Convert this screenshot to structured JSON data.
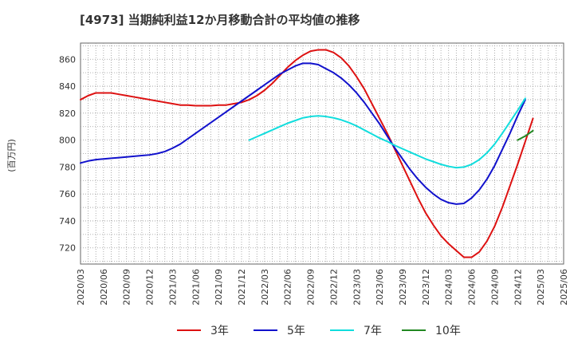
{
  "chart_data": {
    "type": "line",
    "title": "[4973]  当期純利益12か月移動合計の平均値の推移",
    "ylabel": "(百万円)",
    "ylim": [
      708,
      872
    ],
    "yticks": [
      720,
      740,
      760,
      780,
      800,
      820,
      840,
      860
    ],
    "xlim": [
      "2020-03",
      "2025-06"
    ],
    "xticks": [
      "2020/03",
      "2020/06",
      "2020/09",
      "2020/12",
      "2021/03",
      "2021/06",
      "2021/09",
      "2021/12",
      "2022/03",
      "2022/06",
      "2022/09",
      "2022/12",
      "2023/03",
      "2023/06",
      "2023/09",
      "2023/12",
      "2024/03",
      "2024/06",
      "2024/09",
      "2024/12",
      "2025/03",
      "2025/06"
    ],
    "grid": true,
    "legend_position": "bottom",
    "series": [
      {
        "name": "3年",
        "color": "#dd1111",
        "points": [
          [
            "2020-03",
            830
          ],
          [
            "2020-04",
            833
          ],
          [
            "2020-05",
            835
          ],
          [
            "2020-06",
            835
          ],
          [
            "2020-07",
            835
          ],
          [
            "2020-08",
            834
          ],
          [
            "2020-09",
            833
          ],
          [
            "2020-10",
            832
          ],
          [
            "2020-11",
            831
          ],
          [
            "2020-12",
            830
          ],
          [
            "2021-01",
            829
          ],
          [
            "2021-02",
            828
          ],
          [
            "2021-03",
            827
          ],
          [
            "2021-04",
            826
          ],
          [
            "2021-05",
            826
          ],
          [
            "2021-06",
            825.5
          ],
          [
            "2021-07",
            825.5
          ],
          [
            "2021-08",
            825.5
          ],
          [
            "2021-09",
            826
          ],
          [
            "2021-10",
            826
          ],
          [
            "2021-11",
            827
          ],
          [
            "2021-12",
            828
          ],
          [
            "2022-01",
            830
          ],
          [
            "2022-02",
            833
          ],
          [
            "2022-03",
            837
          ],
          [
            "2022-04",
            842
          ],
          [
            "2022-05",
            848
          ],
          [
            "2022-06",
            854
          ],
          [
            "2022-07",
            859
          ],
          [
            "2022-08",
            863
          ],
          [
            "2022-09",
            866
          ],
          [
            "2022-10",
            867
          ],
          [
            "2022-11",
            867
          ],
          [
            "2022-12",
            865
          ],
          [
            "2023-01",
            861
          ],
          [
            "2023-02",
            855
          ],
          [
            "2023-03",
            847
          ],
          [
            "2023-04",
            838
          ],
          [
            "2023-05",
            827
          ],
          [
            "2023-06",
            816
          ],
          [
            "2023-07",
            805
          ],
          [
            "2023-08",
            793
          ],
          [
            "2023-09",
            781
          ],
          [
            "2023-10",
            769
          ],
          [
            "2023-11",
            757
          ],
          [
            "2023-12",
            746
          ],
          [
            "2024-01",
            737
          ],
          [
            "2024-02",
            729
          ],
          [
            "2024-03",
            723
          ],
          [
            "2024-04",
            718
          ],
          [
            "2024-05",
            713
          ],
          [
            "2024-06",
            713
          ],
          [
            "2024-07",
            717
          ],
          [
            "2024-08",
            725
          ],
          [
            "2024-09",
            736
          ],
          [
            "2024-10",
            750
          ],
          [
            "2024-11",
            766
          ],
          [
            "2024-12",
            782
          ],
          [
            "2025-01",
            799
          ],
          [
            "2025-02",
            816
          ]
        ]
      },
      {
        "name": "5年",
        "color": "#1111cc",
        "points": [
          [
            "2020-03",
            783
          ],
          [
            "2020-04",
            784.5
          ],
          [
            "2020-05",
            785.5
          ],
          [
            "2020-06",
            786
          ],
          [
            "2020-07",
            786.5
          ],
          [
            "2020-08",
            787
          ],
          [
            "2020-09",
            787.5
          ],
          [
            "2020-10",
            788
          ],
          [
            "2020-11",
            788.5
          ],
          [
            "2020-12",
            789
          ],
          [
            "2021-01",
            790
          ],
          [
            "2021-02",
            791.5
          ],
          [
            "2021-03",
            794
          ],
          [
            "2021-04",
            797
          ],
          [
            "2021-05",
            801
          ],
          [
            "2021-06",
            805
          ],
          [
            "2021-07",
            809
          ],
          [
            "2021-08",
            813
          ],
          [
            "2021-09",
            817
          ],
          [
            "2021-10",
            821
          ],
          [
            "2021-11",
            825
          ],
          [
            "2021-12",
            829
          ],
          [
            "2022-01",
            833
          ],
          [
            "2022-02",
            837
          ],
          [
            "2022-03",
            841
          ],
          [
            "2022-04",
            845
          ],
          [
            "2022-05",
            849
          ],
          [
            "2022-06",
            852
          ],
          [
            "2022-07",
            855
          ],
          [
            "2022-08",
            857
          ],
          [
            "2022-09",
            857
          ],
          [
            "2022-10",
            856
          ],
          [
            "2022-11",
            853
          ],
          [
            "2022-12",
            850
          ],
          [
            "2023-01",
            846
          ],
          [
            "2023-02",
            841
          ],
          [
            "2023-03",
            835
          ],
          [
            "2023-04",
            828
          ],
          [
            "2023-05",
            820
          ],
          [
            "2023-06",
            812
          ],
          [
            "2023-07",
            803
          ],
          [
            "2023-08",
            794
          ],
          [
            "2023-09",
            786
          ],
          [
            "2023-10",
            778
          ],
          [
            "2023-11",
            771
          ],
          [
            "2023-12",
            765
          ],
          [
            "2024-01",
            760
          ],
          [
            "2024-02",
            756
          ],
          [
            "2024-03",
            753.5
          ],
          [
            "2024-04",
            752.5
          ],
          [
            "2024-05",
            753
          ],
          [
            "2024-06",
            757
          ],
          [
            "2024-07",
            763
          ],
          [
            "2024-08",
            771
          ],
          [
            "2024-09",
            781
          ],
          [
            "2024-10",
            793
          ],
          [
            "2024-11",
            805
          ],
          [
            "2024-12",
            818
          ],
          [
            "2025-01",
            830
          ]
        ]
      },
      {
        "name": "7年",
        "color": "#11dddd",
        "points": [
          [
            "2022-01",
            800
          ],
          [
            "2022-02",
            802.5
          ],
          [
            "2022-03",
            805
          ],
          [
            "2022-04",
            807.5
          ],
          [
            "2022-05",
            810
          ],
          [
            "2022-06",
            812.5
          ],
          [
            "2022-07",
            814.5
          ],
          [
            "2022-08",
            816.5
          ],
          [
            "2022-09",
            817.5
          ],
          [
            "2022-10",
            818
          ],
          [
            "2022-11",
            817.5
          ],
          [
            "2022-12",
            816.5
          ],
          [
            "2023-01",
            815
          ],
          [
            "2023-02",
            813
          ],
          [
            "2023-03",
            810.5
          ],
          [
            "2023-04",
            807.5
          ],
          [
            "2023-05",
            804.5
          ],
          [
            "2023-06",
            801.5
          ],
          [
            "2023-07",
            799
          ],
          [
            "2023-08",
            796
          ],
          [
            "2023-09",
            793.5
          ],
          [
            "2023-10",
            791
          ],
          [
            "2023-11",
            788.5
          ],
          [
            "2023-12",
            786
          ],
          [
            "2024-01",
            784
          ],
          [
            "2024-02",
            782
          ],
          [
            "2024-03",
            780.5
          ],
          [
            "2024-04",
            779.5
          ],
          [
            "2024-05",
            780
          ],
          [
            "2024-06",
            782
          ],
          [
            "2024-07",
            785.5
          ],
          [
            "2024-08",
            790.5
          ],
          [
            "2024-09",
            797
          ],
          [
            "2024-10",
            805
          ],
          [
            "2024-11",
            813.5
          ],
          [
            "2024-12",
            822
          ],
          [
            "2025-01",
            831
          ]
        ]
      },
      {
        "name": "10年",
        "color": "#228822",
        "points": [
          [
            "2024-12",
            800
          ],
          [
            "2025-01",
            803
          ],
          [
            "2025-02",
            807
          ]
        ]
      }
    ]
  }
}
